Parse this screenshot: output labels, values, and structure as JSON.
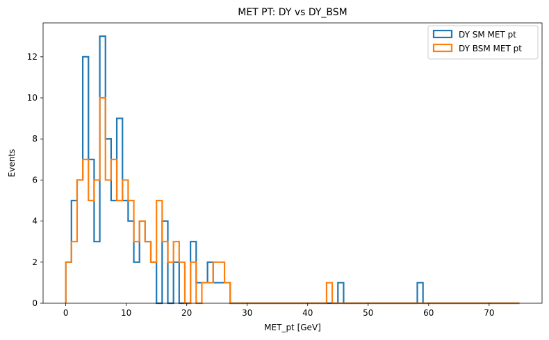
{
  "chart_data": {
    "type": "step-histogram",
    "title": "MET PT: DY vs DY_BSM",
    "xlabel": "MET_pt [GeV]",
    "ylabel": "Events",
    "xlim": [
      -3.75,
      78.75
    ],
    "ylim": [
      0,
      13.65
    ],
    "xticks": [
      0,
      10,
      20,
      30,
      40,
      50,
      60,
      70
    ],
    "yticks": [
      0,
      2,
      4,
      6,
      8,
      10,
      12
    ],
    "bin_start": 0,
    "bin_width": 0.9375,
    "n_bins": 80,
    "legend_position": "upper right",
    "grid": false,
    "series": [
      {
        "name": "DY SM MET pt",
        "color": "#1f77b4",
        "counts": [
          2,
          5,
          6,
          12,
          7,
          3,
          13,
          8,
          5,
          9,
          5,
          4,
          2,
          4,
          3,
          2,
          0,
          4,
          0,
          2,
          0,
          0,
          3,
          1,
          1,
          2,
          1,
          1,
          1,
          0,
          0,
          0,
          0,
          0,
          0,
          0,
          0,
          0,
          0,
          0,
          0,
          0,
          0,
          0,
          0,
          0,
          0,
          0,
          1,
          0,
          0,
          0,
          0,
          0,
          0,
          0,
          0,
          0,
          0,
          0,
          0,
          0,
          1,
          0,
          0,
          0,
          0,
          0,
          0,
          0,
          0,
          0,
          0,
          0,
          0,
          0,
          0,
          0,
          0,
          0
        ]
      },
      {
        "name": "DY BSM MET pt",
        "color": "#ff7f0e",
        "counts": [
          2,
          3,
          6,
          7,
          5,
          6,
          10,
          6,
          7,
          5,
          6,
          5,
          3,
          4,
          3,
          2,
          5,
          3,
          2,
          3,
          2,
          0,
          2,
          0,
          1,
          1,
          2,
          2,
          1,
          0,
          0,
          0,
          0,
          0,
          0,
          0,
          0,
          0,
          0,
          0,
          0,
          0,
          0,
          0,
          0,
          0,
          1,
          0,
          0,
          0,
          0,
          0,
          0,
          0,
          0,
          0,
          0,
          0,
          0,
          0,
          0,
          0,
          0,
          0,
          0,
          0,
          0,
          0,
          0,
          0,
          0,
          0,
          0,
          0,
          0,
          0,
          0,
          0,
          0,
          0
        ]
      }
    ]
  }
}
